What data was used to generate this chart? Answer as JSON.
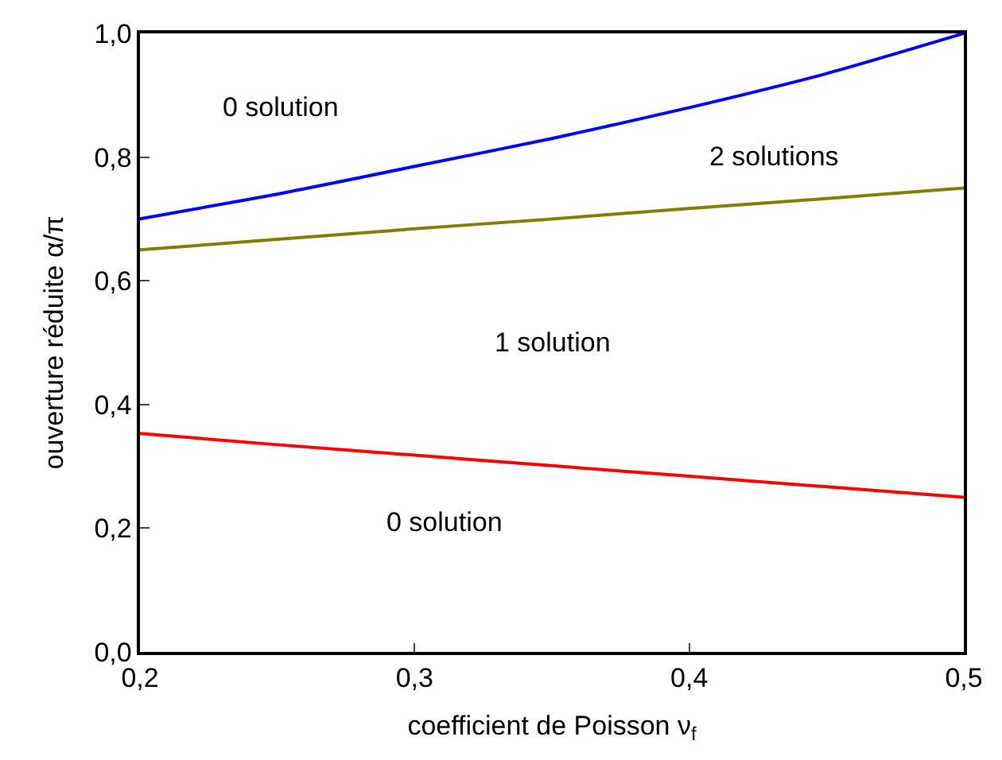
{
  "chart_data": {
    "type": "line",
    "xlabel": "coefficient de Poisson ν$_{f}$",
    "ylabel": "ouverture réduite α/π",
    "x": [
      0.2,
      0.25,
      0.3,
      0.35,
      0.4,
      0.45,
      0.5
    ],
    "series": [
      {
        "color": "#0000ff",
        "values": [
          0.7,
          0.74,
          0.785,
          0.83,
          0.88,
          0.935,
          1.0
        ]
      },
      {
        "color": "#808000",
        "values": [
          0.65,
          0.667,
          0.684,
          0.7,
          0.717,
          0.733,
          0.75
        ]
      },
      {
        "color": "#ff0000",
        "values": [
          0.353,
          0.335,
          0.318,
          0.301,
          0.284,
          0.267,
          0.25
        ]
      }
    ],
    "xlim": [
      0.2,
      0.5
    ],
    "ylim": [
      0.0,
      1.0
    ],
    "xticks": [
      {
        "value": 0.2,
        "label": "0,2"
      },
      {
        "value": 0.3,
        "label": "0,3"
      },
      {
        "value": 0.4,
        "label": "0,4"
      },
      {
        "value": 0.5,
        "label": "0,5"
      }
    ],
    "yticks": [
      {
        "value": 0.0,
        "label": "0,0"
      },
      {
        "value": 0.2,
        "label": "0,2"
      },
      {
        "value": 0.4,
        "label": "0,4"
      },
      {
        "value": 0.6,
        "label": "0,6"
      },
      {
        "value": 0.8,
        "label": "0,8"
      },
      {
        "value": 1.0,
        "label": "1,0"
      }
    ],
    "annotations": [
      "0 solution",
      "2 solutions",
      "1 solution",
      "0 solution"
    ],
    "grid": false,
    "marker": "none",
    "line_style": "solid"
  }
}
